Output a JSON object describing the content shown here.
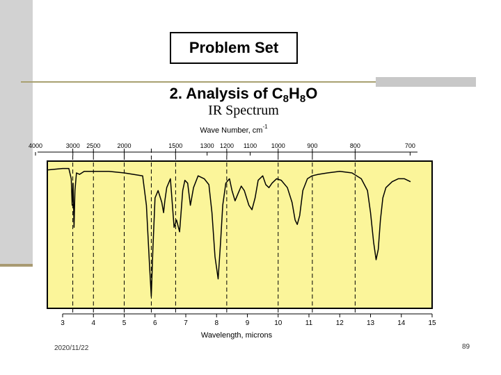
{
  "slide": {
    "title": "Problem Set",
    "subtitle_prefix": "2. Analysis of C",
    "subtitle_sub1": "8",
    "subtitle_mid": "H",
    "subtitle_sub2": "8",
    "subtitle_suffix": "O",
    "spectrum_label": "IR Spectrum",
    "footer_date": "2020/11/22",
    "page_number": "89"
  },
  "colors": {
    "plot_background": "#fbf59a",
    "trace": "#000000",
    "side_bar": "#d2d2d2",
    "rule": "#a8a070"
  },
  "chart_data": {
    "type": "line",
    "title": "IR Spectrum",
    "xlabel": "Wavelength, microns",
    "top_xlabel_text": "Wave Number, cm",
    "top_xlabel_superscript": "-1",
    "ylabel": "",
    "xlim": [
      2.5,
      15
    ],
    "ylim": [
      0,
      100
    ],
    "bottom_ticks": [
      "3",
      "4",
      "5",
      "6",
      "7",
      "8",
      "9",
      "10",
      "11",
      "12",
      "13",
      "14",
      "15"
    ],
    "top_tick_labels": [
      {
        "wavenumber": 4000,
        "label": "4000"
      },
      {
        "wavenumber": 3000,
        "label": "3000"
      },
      {
        "wavenumber": 2500,
        "label": "2500"
      },
      {
        "wavenumber": 2000,
        "label": "2000"
      },
      {
        "wavenumber": 1500,
        "label": "1500"
      },
      {
        "wavenumber": 1300,
        "label": "1300"
      },
      {
        "wavenumber": 1200,
        "label": "1200"
      },
      {
        "wavenumber": 1100,
        "label": "1100"
      },
      {
        "wavenumber": 1000,
        "label": "1000"
      },
      {
        "wavenumber": 900,
        "label": "900"
      },
      {
        "wavenumber": 800,
        "label": "800"
      },
      {
        "wavenumber": 700,
        "label": "700"
      }
    ],
    "reference_lines_microns": [
      3.33,
      4.0,
      5.0,
      5.88,
      6.67,
      8.33,
      10.0,
      11.11,
      12.5
    ],
    "series": [
      {
        "name": "transmittance",
        "x": [
          2.5,
          3.0,
          3.2,
          3.28,
          3.31,
          3.34,
          3.37,
          3.4,
          3.45,
          3.55,
          3.7,
          4.0,
          4.5,
          5.0,
          5.3,
          5.6,
          5.72,
          5.82,
          5.88,
          5.93,
          6.0,
          6.1,
          6.22,
          6.28,
          6.32,
          6.38,
          6.5,
          6.62,
          6.7,
          6.8,
          6.9,
          6.97,
          7.06,
          7.15,
          7.25,
          7.4,
          7.6,
          7.75,
          7.85,
          7.95,
          8.05,
          8.13,
          8.2,
          8.3,
          8.42,
          8.5,
          8.6,
          8.7,
          8.8,
          8.9,
          9.05,
          9.15,
          9.25,
          9.35,
          9.5,
          9.6,
          9.7,
          9.8,
          9.95,
          10.1,
          10.3,
          10.45,
          10.55,
          10.62,
          10.7,
          10.8,
          10.95,
          11.1,
          11.3,
          11.6,
          12.0,
          12.4,
          12.7,
          12.9,
          13.0,
          13.1,
          13.18,
          13.25,
          13.32,
          13.4,
          13.5,
          13.7,
          13.9,
          14.1,
          14.3
        ],
        "y": [
          94,
          95,
          95,
          88,
          70,
          85,
          55,
          80,
          92,
          91,
          93,
          93,
          93,
          92,
          91,
          90,
          70,
          30,
          8,
          40,
          75,
          80,
          72,
          65,
          73,
          82,
          88,
          55,
          60,
          52,
          80,
          87,
          85,
          70,
          82,
          90,
          88,
          84,
          65,
          35,
          20,
          45,
          70,
          85,
          88,
          80,
          73,
          78,
          83,
          80,
          70,
          67,
          75,
          87,
          90,
          84,
          82,
          85,
          88,
          87,
          82,
          72,
          60,
          57,
          63,
          80,
          88,
          90,
          91,
          92,
          93,
          92,
          88,
          80,
          65,
          45,
          33,
          40,
          60,
          75,
          82,
          86,
          88,
          88,
          86
        ]
      }
    ]
  }
}
